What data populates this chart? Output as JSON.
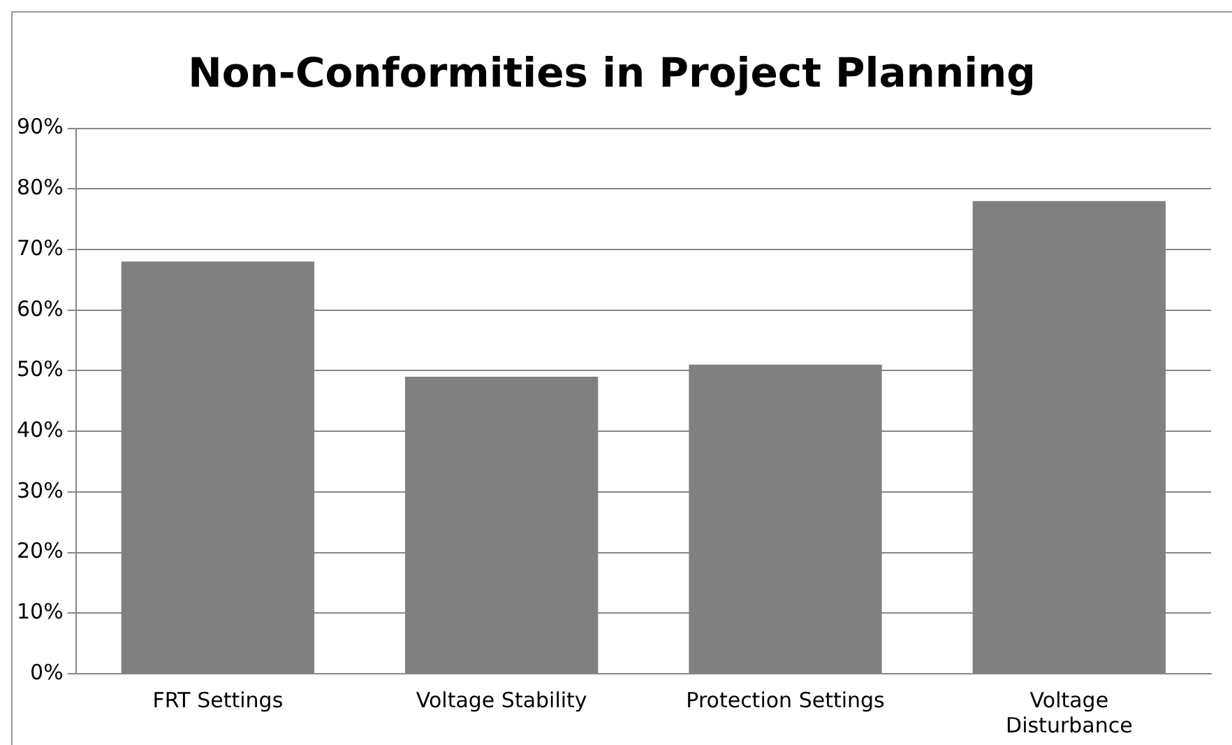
{
  "chart_data": {
    "type": "bar",
    "title": "Non-Conformities in Project Planning",
    "categories": [
      "FRT Settings",
      "Voltage Stability",
      "Protection Settings",
      "Voltage\nDisturbance"
    ],
    "values": [
      68,
      49,
      51,
      78
    ],
    "color": "#808080",
    "ylim": [
      0,
      90
    ],
    "yticks": [
      {
        "value": 0,
        "label": "0%"
      },
      {
        "value": 10,
        "label": "10%"
      },
      {
        "value": 20,
        "label": "20%"
      },
      {
        "value": 30,
        "label": "30%"
      },
      {
        "value": 40,
        "label": "40%"
      },
      {
        "value": 50,
        "label": "50%"
      },
      {
        "value": 60,
        "label": "60%"
      },
      {
        "value": 70,
        "label": "70%"
      },
      {
        "value": 80,
        "label": "80%"
      },
      {
        "value": 90,
        "label": "90%"
      }
    ],
    "grid": "y",
    "legend": false
  }
}
